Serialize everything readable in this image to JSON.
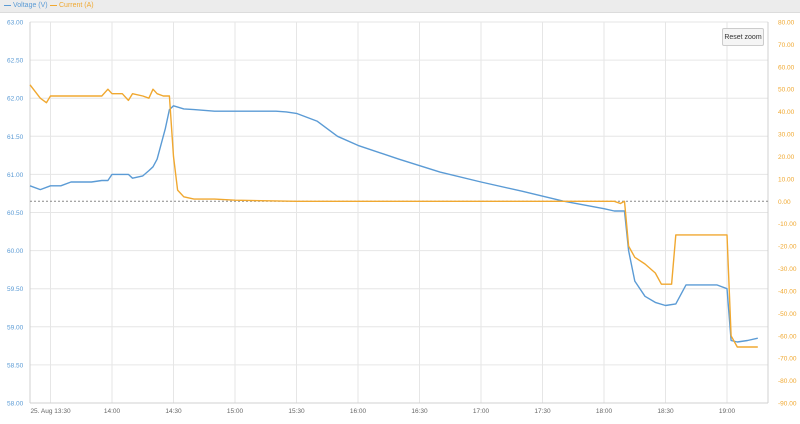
{
  "legend": {
    "voltage_label": "Voltage (V)",
    "current_label": "Current (A)"
  },
  "reset_zoom_label": "Reset zoom",
  "colors": {
    "voltage": "#5b9bd5",
    "current": "#f0a830",
    "grid": "#e6e6e6",
    "legend_bg": "#ececec"
  },
  "chart_data": {
    "type": "line",
    "title": "",
    "x_tick_labels": [
      "25. Aug 13:30",
      "14:00",
      "14:30",
      "15:00",
      "15:30",
      "16:00",
      "16:30",
      "17:00",
      "17:30",
      "18:00",
      "18:30",
      "19:00"
    ],
    "x_tick_minutes": [
      810,
      840,
      870,
      900,
      930,
      960,
      990,
      1020,
      1050,
      1080,
      1110,
      1140
    ],
    "xlim": [
      "13:20",
      "19:20"
    ],
    "y_left": {
      "label": "Voltage (V)",
      "ylim": [
        58.0,
        63.0
      ],
      "tick_labels": [
        "58.00",
        "58.50",
        "59.00",
        "59.50",
        "60.00",
        "60.50",
        "61.00",
        "61.50",
        "62.00",
        "62.50",
        "63.00"
      ]
    },
    "y_right": {
      "label": "Current (A)",
      "ylim": [
        -90,
        80
      ],
      "tick_labels": [
        "80.00",
        "70.00",
        "60.00",
        "50.00",
        "40.00",
        "30.00",
        "20.00",
        "10.00",
        "0.00",
        "-10.00",
        "-20.00",
        "-30.00",
        "-40.00",
        "-50.00",
        "-60.00",
        "-70.00",
        "-80.00",
        "-90.00"
      ]
    },
    "zero_line": "dotted at 0.00 A",
    "grid": true,
    "legend_position": "top-left",
    "series": [
      {
        "name": "Voltage (V)",
        "axis": "left",
        "x": [
          "13:20",
          "13:25",
          "13:30",
          "13:35",
          "13:40",
          "13:45",
          "13:50",
          "13:55",
          "13:58",
          "14:00",
          "14:05",
          "14:08",
          "14:10",
          "14:15",
          "14:18",
          "14:20",
          "14:22",
          "14:24",
          "14:26",
          "14:28",
          "14:30",
          "14:35",
          "14:40",
          "14:50",
          "15:00",
          "15:10",
          "15:20",
          "15:25",
          "15:30",
          "15:40",
          "15:50",
          "16:00",
          "16:20",
          "16:40",
          "17:00",
          "17:20",
          "17:40",
          "18:00",
          "18:05",
          "18:10",
          "18:12",
          "18:15",
          "18:20",
          "18:25",
          "18:30",
          "18:35",
          "18:40",
          "18:45",
          "18:50",
          "18:55",
          "19:00",
          "19:02",
          "19:05",
          "19:10",
          "19:15"
        ],
        "values": [
          60.85,
          60.8,
          60.85,
          60.85,
          60.9,
          60.9,
          60.9,
          60.92,
          60.92,
          61.0,
          61.0,
          61.0,
          60.95,
          60.98,
          61.05,
          61.1,
          61.2,
          61.4,
          61.6,
          61.85,
          61.9,
          61.86,
          61.85,
          61.83,
          61.83,
          61.83,
          61.83,
          61.82,
          61.8,
          61.7,
          61.5,
          61.38,
          61.2,
          61.03,
          60.9,
          60.78,
          60.65,
          60.55,
          60.52,
          60.52,
          60.0,
          59.6,
          59.4,
          59.32,
          59.28,
          59.3,
          59.55,
          59.55,
          59.55,
          59.55,
          59.5,
          58.82,
          58.8,
          58.82,
          58.85
        ]
      },
      {
        "name": "Current (A)",
        "axis": "right",
        "x": [
          "13:20",
          "13:25",
          "13:28",
          "13:30",
          "13:35",
          "13:45",
          "13:55",
          "13:58",
          "14:00",
          "14:05",
          "14:08",
          "14:10",
          "14:15",
          "14:18",
          "14:20",
          "14:22",
          "14:25",
          "14:28",
          "14:30",
          "14:32",
          "14:35",
          "14:40",
          "14:50",
          "15:00",
          "15:30",
          "16:00",
          "16:30",
          "17:00",
          "17:30",
          "17:50",
          "18:00",
          "18:05",
          "18:08",
          "18:10",
          "18:12",
          "18:15",
          "18:20",
          "18:25",
          "18:28",
          "18:30",
          "18:33",
          "18:35",
          "18:40",
          "18:45",
          "18:50",
          "18:55",
          "19:00",
          "19:02",
          "19:05",
          "19:10",
          "19:15"
        ],
        "values": [
          52,
          46,
          44,
          47,
          47,
          47,
          47,
          50,
          48,
          48,
          45,
          48,
          47,
          46,
          50,
          48,
          47,
          47,
          20,
          5,
          2,
          1,
          1,
          0.5,
          0,
          0,
          0,
          0,
          0,
          0,
          0,
          0,
          -1,
          0,
          -20,
          -25,
          -28,
          -32,
          -37,
          -37,
          -37,
          -15,
          -15,
          -15,
          -15,
          -15,
          -15,
          -60,
          -65,
          -65,
          -65
        ]
      }
    ]
  }
}
